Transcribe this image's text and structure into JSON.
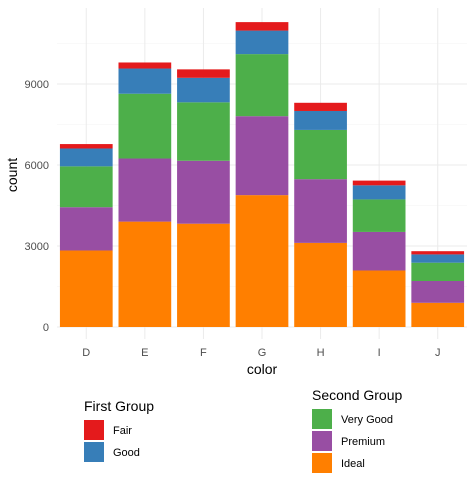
{
  "chart_data": {
    "type": "bar",
    "stacked": true,
    "xlabel": "color",
    "ylabel": "count",
    "categories": [
      "D",
      "E",
      "F",
      "G",
      "H",
      "I",
      "J"
    ],
    "ylim": [
      0,
      11300
    ],
    "yticks": [
      0,
      3000,
      6000,
      9000
    ],
    "grid": true,
    "series": [
      {
        "name": "Ideal",
        "color": "#FF7F00",
        "values": [
          2834,
          3903,
          3826,
          4884,
          3115,
          2093,
          896
        ]
      },
      {
        "name": "Premium",
        "color": "#984EA3",
        "values": [
          1603,
          2337,
          2331,
          2924,
          2360,
          1428,
          808
        ]
      },
      {
        "name": "Very Good",
        "color": "#4DAF4A",
        "values": [
          1513,
          2400,
          2164,
          2299,
          1824,
          1204,
          678
        ]
      },
      {
        "name": "Good",
        "color": "#377EB8",
        "values": [
          662,
          933,
          909,
          871,
          702,
          522,
          307
        ]
      },
      {
        "name": "Fair",
        "color": "#E41A1C",
        "values": [
          163,
          224,
          312,
          314,
          303,
          175,
          119
        ]
      }
    ],
    "legends": [
      {
        "title": "First Group",
        "entries": [
          {
            "label": "Fair",
            "color": "#E41A1C"
          },
          {
            "label": "Good",
            "color": "#377EB8"
          }
        ]
      },
      {
        "title": "Second Group",
        "entries": [
          {
            "label": "Very Good",
            "color": "#4DAF4A"
          },
          {
            "label": "Premium",
            "color": "#984EA3"
          },
          {
            "label": "Ideal",
            "color": "#FF7F00"
          }
        ]
      }
    ]
  }
}
